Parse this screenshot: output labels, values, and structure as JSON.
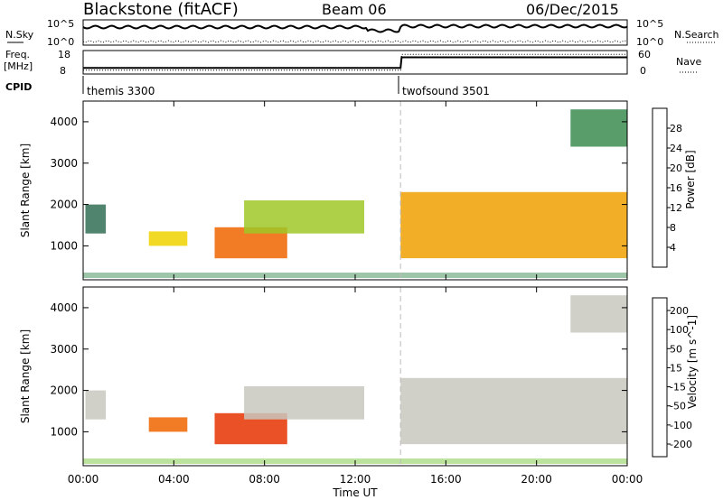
{
  "header": {
    "title": "Blackstone (fitACF)",
    "beam": "Beam 06",
    "date": "06/Dec/2015"
  },
  "aux": {
    "nsky_label": "N.Sky",
    "nsearch_label": "N.Search",
    "freq_label": "Freq.",
    "freq_unit": "[MHz]",
    "nave_label": "Nave",
    "cpid_label": "CPID",
    "nsky_ticks": [
      "10^5",
      "10^0"
    ],
    "nsearch_ticks": [
      "10^5",
      "10^0"
    ],
    "freq_ticks": [
      "18",
      "8"
    ],
    "nave_ticks": [
      "60",
      "0"
    ],
    "cpid_segments": [
      {
        "start_hour": 0,
        "label": "themis 3300"
      },
      {
        "start_hour": 14,
        "label": "twofsound 3501"
      }
    ],
    "freq_series": [
      {
        "hour": 0,
        "mhz": 10.6
      },
      {
        "hour": 14,
        "mhz": 10.6
      },
      {
        "hour": 14.05,
        "mhz": 15.1
      },
      {
        "hour": 24,
        "mhz": 15.1
      }
    ],
    "nave_series": [
      {
        "hour": 0,
        "nave": 10
      },
      {
        "hour": 14,
        "nave": 10
      },
      {
        "hour": 14.05,
        "nave": 50
      },
      {
        "hour": 24,
        "nave": 50
      }
    ]
  },
  "panels": {
    "power": {
      "cbar_label": "Power [dB]",
      "ylabel": "Slant Range [km]"
    },
    "velocity": {
      "cbar_label": "Velocity [m s^-1]",
      "ylabel": "Slant Range [km]"
    }
  },
  "colors": {
    "power_scale": [
      "#0000ff",
      "#1e50a0",
      "#326e55",
      "#3c8c50",
      "#5aaa32",
      "#a0c828",
      "#f0d200",
      "#f0a000",
      "#f06400",
      "#e63200",
      "#dc0000"
    ],
    "velocity_scale": [
      "#2030c8",
      "#1e6eb4",
      "#288c3c",
      "#78c83c",
      "#c8c8be",
      "#c8c8be",
      "#f0c850",
      "#f0a000",
      "#f06400",
      "#e63200",
      "#e60000"
    ],
    "ground_scatter": "#c8c8be"
  },
  "chart_data": {
    "type": "heatmap",
    "xlabel": "Time UT",
    "x_ticks": [
      "00:00",
      "04:00",
      "08:00",
      "12:00",
      "16:00",
      "20:00",
      "00:00"
    ],
    "xlim_hours": [
      0,
      24
    ],
    "y_ticks": [
      1000,
      2000,
      3000,
      4000
    ],
    "ylim_km": [
      180,
      4500
    ],
    "power_ticks": [
      4,
      8,
      12,
      16,
      20,
      24,
      28
    ],
    "power_range_db": [
      0,
      32
    ],
    "velocity_ticks": [
      200,
      100,
      50,
      15,
      -15,
      -50,
      -100,
      -200
    ],
    "mode_change_hour": 14,
    "echo_regions": [
      {
        "t0": 0.1,
        "t1": 1.0,
        "r0": 1300,
        "r1": 2000,
        "power": 6,
        "velocity": 0
      },
      {
        "t0": 2.9,
        "t1": 4.6,
        "r0": 1000,
        "r1": 1350,
        "power": 18,
        "velocity": -70
      },
      {
        "t0": 5.8,
        "t1": 9.0,
        "r0": 700,
        "r1": 1450,
        "power": 24,
        "velocity": -130
      },
      {
        "t0": 7.1,
        "t1": 12.4,
        "r0": 1300,
        "r1": 2100,
        "power": 16,
        "velocity": 0
      },
      {
        "t0": 14.0,
        "t1": 24.0,
        "r0": 700,
        "r1": 2300,
        "power": 22,
        "velocity": 0
      },
      {
        "t0": 21.5,
        "t1": 24.0,
        "r0": 3400,
        "r1": 4300,
        "power": 10,
        "velocity": 0
      }
    ]
  }
}
